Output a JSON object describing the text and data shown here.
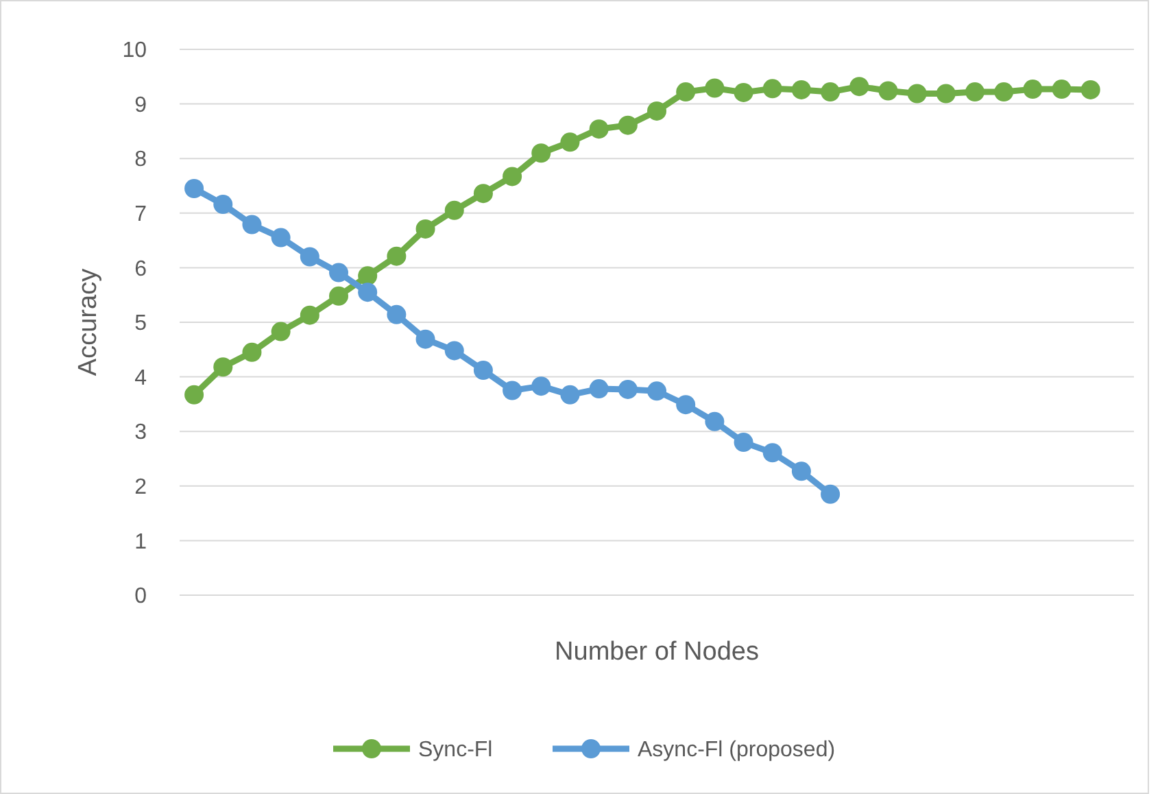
{
  "chart_data": {
    "type": "line",
    "xlabel": "Number of Nodes",
    "ylabel": "Accuracy",
    "categories": [
      null,
      null,
      null,
      null,
      null,
      null,
      null,
      null,
      null,
      null,
      null,
      null,
      null,
      null,
      null,
      null,
      null,
      null,
      null,
      null,
      null,
      null,
      null,
      null,
      null,
      null,
      null,
      null,
      null,
      null,
      null,
      null,
      null
    ],
    "series": [
      {
        "name": "Sync-Fl",
        "color": "#70ad47",
        "values": [
          3.67,
          4.18,
          4.45,
          4.83,
          5.13,
          5.48,
          5.85,
          6.21,
          6.71,
          7.05,
          7.36,
          7.67,
          8.1,
          8.3,
          8.54,
          8.61,
          8.87,
          9.22,
          9.29,
          9.21,
          9.28,
          9.26,
          9.22,
          9.32,
          9.24,
          9.19,
          9.19,
          9.22,
          9.22,
          9.27,
          9.27,
          9.26,
          null
        ]
      },
      {
        "name": "Async-Fl (proposed)",
        "color": "#5b9bd5",
        "values": [
          7.45,
          7.16,
          6.79,
          6.55,
          6.2,
          5.91,
          5.55,
          5.14,
          4.69,
          4.48,
          4.12,
          3.75,
          3.83,
          3.67,
          3.78,
          3.77,
          3.74,
          3.49,
          3.18,
          2.8,
          2.61,
          2.27,
          1.85,
          null,
          null,
          null,
          null,
          null,
          null,
          null,
          null,
          null,
          null
        ]
      }
    ],
    "ylim": [
      0,
      10
    ],
    "yticks": [
      0,
      1,
      2,
      3,
      4,
      5,
      6,
      7,
      8,
      9,
      10
    ],
    "grid": "y",
    "legend": "bottom",
    "marker": "circle",
    "line_style": "solid",
    "tick_labels": "y"
  }
}
